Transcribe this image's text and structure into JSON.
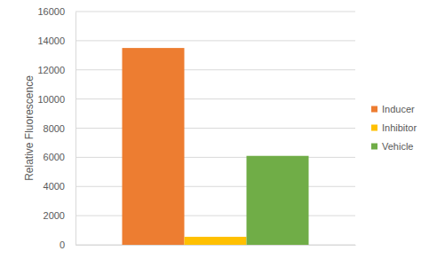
{
  "chart_data": {
    "type": "bar",
    "y_label": "Relative Fluorescence",
    "categories": [
      null
    ],
    "series": [
      {
        "name": "Inducer",
        "color": "#ed7d31",
        "values": [
          13500
        ]
      },
      {
        "name": "Inhibitor",
        "color": "#ffc000",
        "values": [
          550
        ]
      },
      {
        "name": "Vehicle",
        "color": "#70ad47",
        "values": [
          6100
        ]
      }
    ],
    "ylim": [
      0,
      16000
    ],
    "yticks": [
      0,
      2000,
      4000,
      6000,
      8000,
      10000,
      12000,
      14000,
      16000
    ],
    "grid": true,
    "legend": "right"
  }
}
